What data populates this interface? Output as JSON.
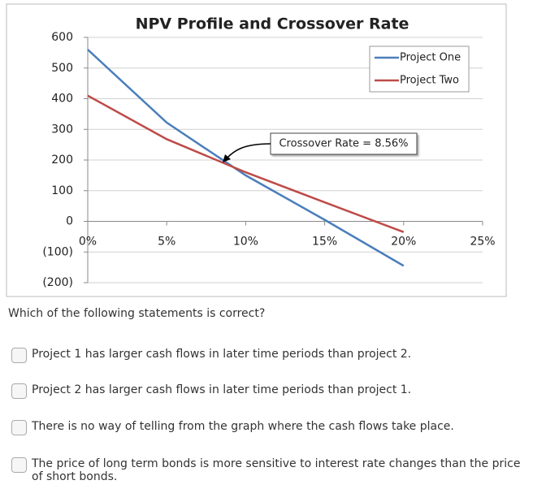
{
  "chart_data": {
    "type": "line",
    "title": "NPV Profile and Crossover Rate",
    "x": [
      0,
      5,
      10,
      15,
      20
    ],
    "series": [
      {
        "name": "Project One",
        "color": "#4a7ebb",
        "values": [
          560,
          322,
          150,
          5,
          -145
        ]
      },
      {
        "name": "Project Two",
        "color": "#be4b48",
        "values": [
          410,
          268,
          160,
          62,
          -35
        ]
      }
    ],
    "annotation": "Crossover Rate = 8.56%",
    "xlim": [
      0,
      25
    ],
    "xticks": [
      {
        "value": 0,
        "label": "0%"
      },
      {
        "value": 5,
        "label": "5%"
      },
      {
        "value": 10,
        "label": "10%"
      },
      {
        "value": 15,
        "label": "15%"
      },
      {
        "value": 20,
        "label": "20%"
      },
      {
        "value": 25,
        "label": "25%"
      }
    ],
    "ylim": [
      -200,
      600
    ],
    "yticks": [
      {
        "value": -200,
        "label": "(200)"
      },
      {
        "value": -100,
        "label": "(100)"
      },
      0,
      100,
      200,
      300,
      400,
      500,
      600
    ],
    "grid": true,
    "legend": "upper right"
  },
  "question": "Which of the following statements is correct?",
  "options": [
    "Project 1 has larger cash flows in later time periods than project 2.",
    "Project 2 has larger cash flows in later time periods than project 1.",
    "There is no way of telling from the graph where the cash flows take place.",
    "The price of long term bonds is more sensitive to interest rate changes than the price of short bonds."
  ]
}
